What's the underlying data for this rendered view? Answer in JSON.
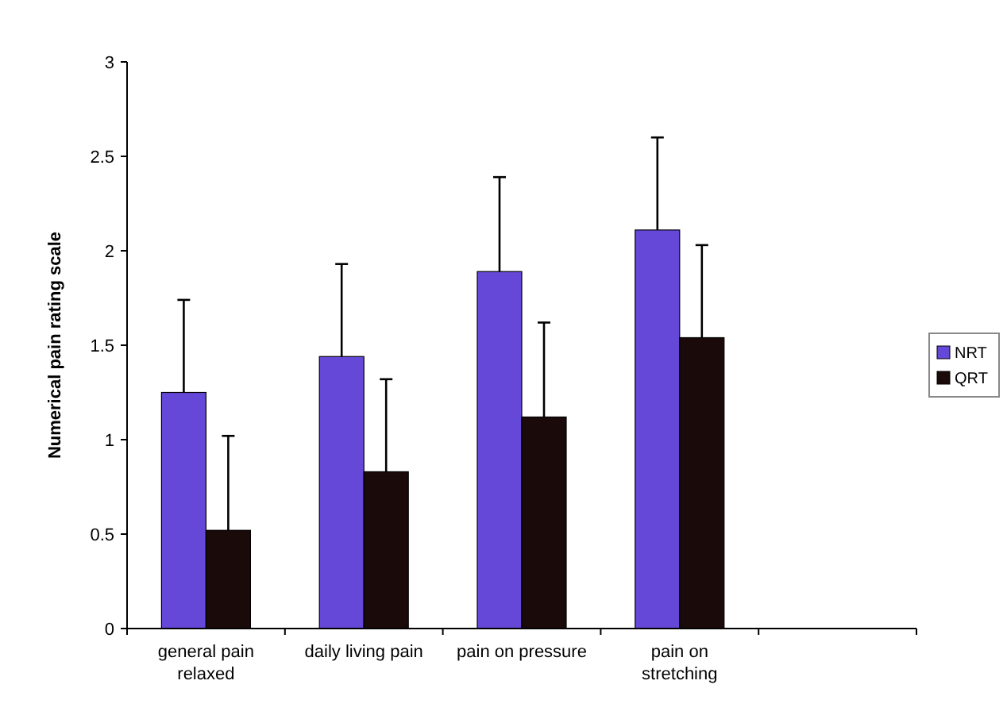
{
  "chart_data": {
    "type": "bar",
    "ylabel": "Numerical pain rating scale",
    "categories": [
      "general pain relaxed",
      "daily living pain",
      "pain on pressure",
      "pain on stretching",
      null
    ],
    "series": [
      {
        "name": "NRT",
        "color": "#6548d8",
        "values": [
          1.25,
          1.44,
          1.89,
          2.11,
          null
        ],
        "errors": [
          0.49,
          0.49,
          0.5,
          0.49,
          null
        ]
      },
      {
        "name": "QRT",
        "color": "#1a0a0a",
        "values": [
          0.52,
          0.83,
          1.12,
          1.54,
          null
        ],
        "errors": [
          0.5,
          0.49,
          0.5,
          0.49,
          null
        ]
      }
    ],
    "ylim": [
      0,
      3
    ],
    "yticks": [
      0,
      0.5,
      1,
      1.5,
      2,
      2.5,
      3
    ],
    "grid": false,
    "legend": "right"
  }
}
